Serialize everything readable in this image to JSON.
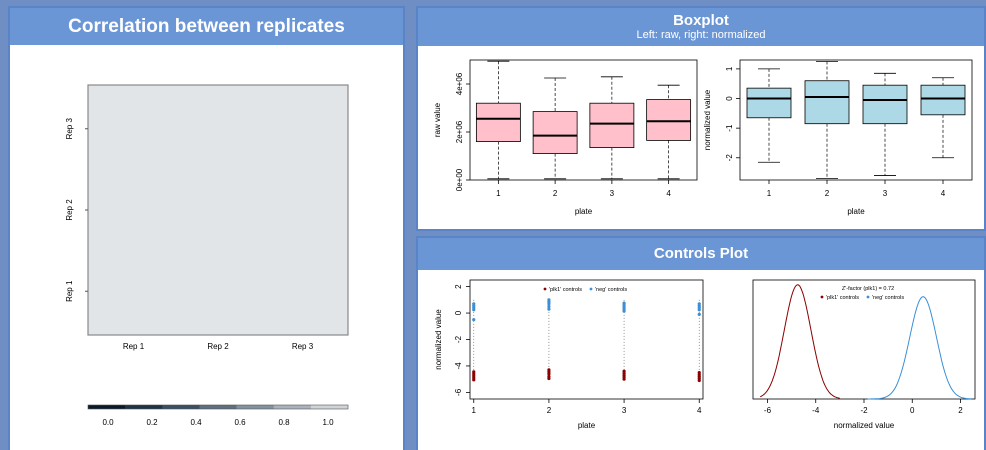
{
  "panels": {
    "correlation": {
      "title": "Correlation between replicates"
    },
    "boxplot": {
      "title": "Boxplot",
      "subtitle": "Left: raw, right: normalized"
    },
    "controls": {
      "title": "Controls Plot"
    }
  },
  "colors": {
    "header_bg": "#6b96d6",
    "page_bg": "#6f8fc4",
    "raw_box": "#ffc0cb",
    "norm_box": "#add8e6",
    "positive_control": "#8b0000",
    "negative_control": "#3a8fd6",
    "heatmap_fill": "#e1e5e8"
  },
  "chart_data": [
    {
      "type": "heatmap",
      "x_labels": [
        "Rep 1",
        "Rep 2",
        "Rep 3"
      ],
      "y_labels": [
        "Rep 1",
        "Rep 2",
        "Rep 3"
      ],
      "colorbar": {
        "ticks": [
          "0.0",
          "0.2",
          "0.4",
          "0.6",
          "0.8",
          "1.0"
        ],
        "colors": [
          "#0b1a2b",
          "#1f3347",
          "#3a4f63",
          "#5d6f80",
          "#84929e",
          "#aab3bb",
          "#cfd4d8"
        ]
      }
    },
    {
      "type": "box",
      "xlabel": "plate",
      "ylabel": "raw value",
      "categories": [
        "1",
        "2",
        "3",
        "4"
      ],
      "ylim": [
        0,
        5000000
      ],
      "yticks": [
        0,
        2000000,
        4000000
      ],
      "ytick_labels": [
        "0e+00",
        "2e+06",
        "4e+06"
      ],
      "boxes": [
        {
          "min": 50000,
          "q1": 1600000,
          "median": 2550000,
          "q3": 3200000,
          "max": 4950000
        },
        {
          "min": 50000,
          "q1": 1100000,
          "median": 1850000,
          "q3": 2850000,
          "max": 4250000
        },
        {
          "min": 50000,
          "q1": 1350000,
          "median": 2350000,
          "q3": 3200000,
          "max": 4300000
        },
        {
          "min": 50000,
          "q1": 1650000,
          "median": 2450000,
          "q3": 3350000,
          "max": 3950000
        }
      ]
    },
    {
      "type": "box",
      "xlabel": "plate",
      "ylabel": "normalized value",
      "categories": [
        "1",
        "2",
        "3",
        "4"
      ],
      "ylim": [
        -2.75,
        1.3
      ],
      "yticks": [
        -2,
        -1,
        0,
        1
      ],
      "ytick_labels": [
        "-2",
        "-1",
        "0",
        "1"
      ],
      "boxes": [
        {
          "min": -2.15,
          "q1": -0.65,
          "median": 0.0,
          "q3": 0.35,
          "max": 1.0
        },
        {
          "min": -2.7,
          "q1": -0.85,
          "median": 0.05,
          "q3": 0.6,
          "max": 1.25
        },
        {
          "min": -2.6,
          "q1": -0.85,
          "median": -0.05,
          "q3": 0.45,
          "max": 0.85
        },
        {
          "min": -2.0,
          "q1": -0.55,
          "median": 0.0,
          "q3": 0.45,
          "max": 0.7
        }
      ]
    },
    {
      "type": "scatter",
      "xlabel": "plate",
      "ylabel": "normalized value",
      "xlim": [
        0.95,
        4.05
      ],
      "ylim": [
        -6.5,
        2.5
      ],
      "xticks": [
        1,
        2,
        3,
        4
      ],
      "yticks": [
        -6,
        -4,
        -2,
        0,
        2
      ],
      "legend": [
        "'plk1' controls",
        "'neg' controls"
      ],
      "series": [
        {
          "name": "'plk1' controls",
          "x": [
            1,
            1,
            1,
            1,
            1,
            2,
            2,
            2,
            2,
            2,
            3,
            3,
            3,
            3,
            3,
            4,
            4,
            4,
            4,
            4
          ],
          "y": [
            -4.45,
            -4.6,
            -4.75,
            -4.9,
            -5.05,
            -4.3,
            -4.45,
            -4.6,
            -4.8,
            -4.95,
            -4.4,
            -4.55,
            -4.7,
            -4.85,
            -5.0,
            -4.5,
            -4.65,
            -4.8,
            -4.95,
            -5.1
          ]
        },
        {
          "name": "'neg' controls",
          "x": [
            1,
            1,
            1,
            1,
            1,
            2,
            2,
            2,
            2,
            2,
            3,
            3,
            3,
            3,
            3,
            4,
            4,
            4,
            4,
            4
          ],
          "y": [
            0.7,
            0.55,
            0.4,
            0.25,
            -0.5,
            1.0,
            0.85,
            0.7,
            0.5,
            0.3,
            0.75,
            0.6,
            0.45,
            0.3,
            0.15,
            0.7,
            0.55,
            0.4,
            0.25,
            -0.1
          ]
        }
      ]
    },
    {
      "type": "line",
      "xlabel": "normalized value",
      "title": "Z'-factor (plk1) = 0.72",
      "xlim": [
        -6.6,
        2.6
      ],
      "ylim": [
        0,
        1
      ],
      "xticks": [
        -6,
        -4,
        -2,
        0,
        2
      ],
      "legend": [
        "'plk1' controls",
        "'neg' controls"
      ],
      "series": [
        {
          "name": "'plk1' controls",
          "mean": -4.75,
          "sd": 0.55,
          "range": [
            -6.3,
            -3.0
          ],
          "peak": 0.96
        },
        {
          "name": "'neg' controls",
          "mean": 0.45,
          "sd": 0.55,
          "range": [
            -1.85,
            2.45
          ],
          "peak": 0.86
        }
      ]
    }
  ]
}
